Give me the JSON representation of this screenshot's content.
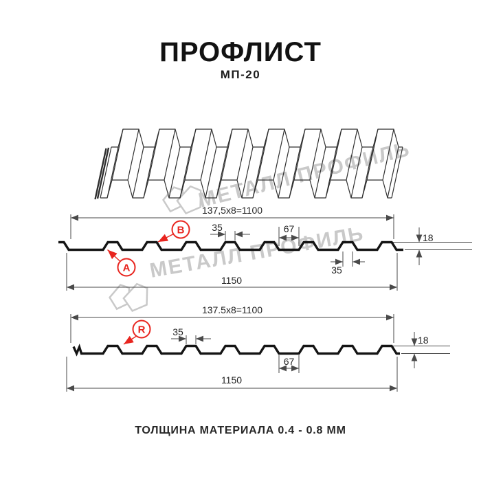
{
  "header": {
    "title": "ПРОФЛИСТ",
    "subtitle": "МП-20"
  },
  "watermark": {
    "brand": "МЕТАЛЛ ПРОФИЛЬ"
  },
  "sections": {
    "top": {
      "module_dim": "137,5x8=1100",
      "crest_dim": "35",
      "flat_dim": "67",
      "height_dim": "18",
      "crest_dim_bottom": "35",
      "overall_dim": "1150",
      "side_a_label": "А",
      "side_b_label": "В"
    },
    "bottom": {
      "module_dim": "137.5x8=1100",
      "crest_dim": "35",
      "flat_dim": "67",
      "height_dim": "18",
      "overall_dim": "1150",
      "r_label": "R"
    }
  },
  "footer": {
    "thickness_note": "ТОЛЩИНА МАТЕРИАЛА 0.4 - 0.8 ММ"
  },
  "colors": {
    "accent_red": "#e8251f",
    "line": "#141414",
    "dim_line": "#4a4a4a",
    "watermark": "#c9c9c9"
  }
}
